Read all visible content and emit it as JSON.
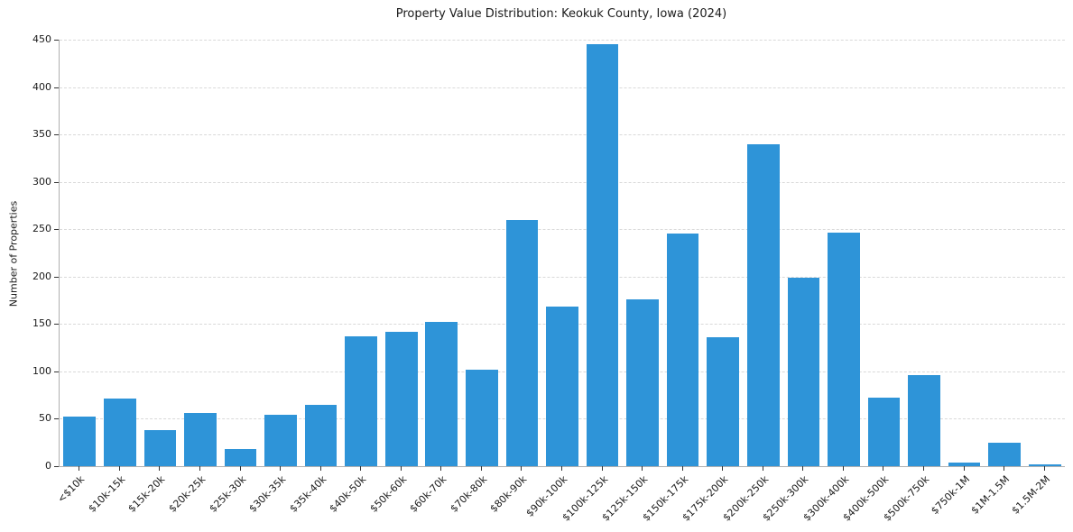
{
  "chart_data": {
    "type": "bar",
    "title": "Property Value Distribution: Keokuk County, Iowa (2024)",
    "xlabel": "",
    "ylabel": "Number of Properties",
    "ylim": [
      0,
      450
    ],
    "yticks": [
      0,
      50,
      100,
      150,
      200,
      250,
      300,
      350,
      400,
      450
    ],
    "grid": "horizontal-dashed",
    "legend": "none",
    "bar_color": "#2E94D8",
    "grid_color": "#d9d9d9",
    "categories": [
      "<$10k",
      "$10k-15k",
      "$15k-20k",
      "$20k-25k",
      "$25k-30k",
      "$30k-35k",
      "$35k-40k",
      "$40k-50k",
      "$50k-60k",
      "$60k-70k",
      "$70k-80k",
      "$80k-90k",
      "$90k-100k",
      "$100k-125k",
      "$125k-150k",
      "$150k-175k",
      "$175k-200k",
      "$200k-250k",
      "$250k-300k",
      "$300k-400k",
      "$400k-500k",
      "$500k-750k",
      "$750k-1M",
      "$1M-1.5M",
      "$1.5M-2M"
    ],
    "values": [
      52,
      71,
      38,
      56,
      18,
      54,
      65,
      137,
      142,
      152,
      102,
      260,
      168,
      445,
      176,
      245,
      136,
      340,
      199,
      246,
      72,
      96,
      4,
      25,
      2
    ]
  }
}
